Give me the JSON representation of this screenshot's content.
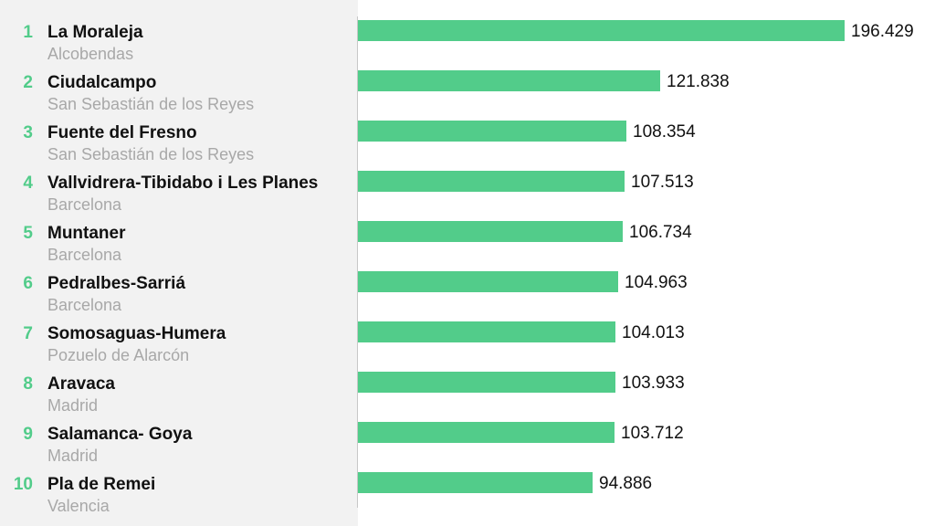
{
  "chart_data": {
    "type": "bar",
    "orientation": "horizontal",
    "title": "",
    "xlabel": "",
    "ylabel": "",
    "xlim": [
      0,
      196429
    ],
    "grid": false,
    "legend": "none",
    "bar_color": "#52cc8a",
    "rank_color": "#52cc8a",
    "rows": [
      {
        "rank": "1",
        "name": "La Moraleja",
        "city": "Alcobendas",
        "value": 196429,
        "value_label": "196.429"
      },
      {
        "rank": "2",
        "name": "Ciudalcampo",
        "city": "San Sebastián de los Reyes",
        "value": 121838,
        "value_label": "121.838"
      },
      {
        "rank": "3",
        "name": "Fuente del Fresno",
        "city": "San Sebastián de los Reyes",
        "value": 108354,
        "value_label": "108.354"
      },
      {
        "rank": "4",
        "name": "Vallvidrera-Tibidabo i Les Planes",
        "city": "Barcelona",
        "value": 107513,
        "value_label": "107.513"
      },
      {
        "rank": "5",
        "name": "Muntaner",
        "city": "Barcelona",
        "value": 106734,
        "value_label": "106.734"
      },
      {
        "rank": "6",
        "name": "Pedralbes-Sarriá",
        "city": "Barcelona",
        "value": 104963,
        "value_label": "104.963"
      },
      {
        "rank": "7",
        "name": "Somosaguas-Humera",
        "city": "Pozuelo de Alarcón",
        "value": 104013,
        "value_label": "104.013"
      },
      {
        "rank": "8",
        "name": "Aravaca",
        "city": "Madrid",
        "value": 103933,
        "value_label": "103.933"
      },
      {
        "rank": "9",
        "name": "Salamanca- Goya",
        "city": "Madrid",
        "value": 103712,
        "value_label": "103.712"
      },
      {
        "rank": "10",
        "name": "Pla de Remei",
        "city": "Valencia",
        "value": 94886,
        "value_label": "94.886"
      }
    ]
  }
}
